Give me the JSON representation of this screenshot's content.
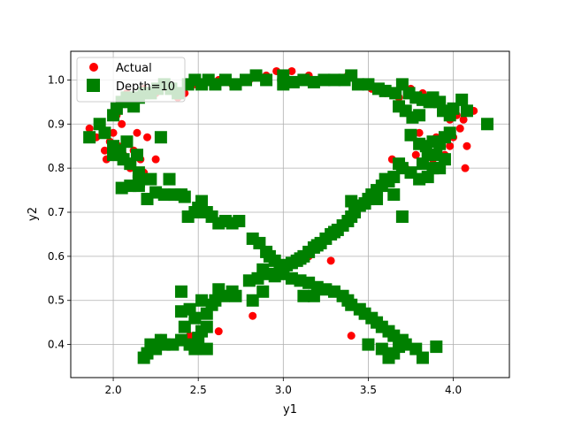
{
  "chart_data": {
    "type": "scatter",
    "xlabel": "y1",
    "ylabel": "y2",
    "xlim": [
      1.75,
      4.33
    ],
    "ylim": [
      0.325,
      1.065
    ],
    "xticks": [
      "2.0",
      "2.5",
      "3.0",
      "3.5",
      "4.0"
    ],
    "xtick_values": [
      2.0,
      2.5,
      3.0,
      3.5,
      4.0
    ],
    "yticks": [
      "0.4",
      "0.5",
      "0.6",
      "0.7",
      "0.8",
      "0.9",
      "1.0"
    ],
    "ytick_values": [
      0.4,
      0.5,
      0.6,
      0.7,
      0.8,
      0.9,
      1.0
    ],
    "grid": true,
    "legend_position": "top-left",
    "series": [
      {
        "name": "Actual",
        "marker": "circle",
        "color": "#ff0000",
        "points": [
          [
            1.86,
            0.89
          ],
          [
            1.9,
            0.87
          ],
          [
            1.93,
            0.9
          ],
          [
            1.95,
            0.84
          ],
          [
            1.96,
            0.82
          ],
          [
            1.98,
            0.86
          ],
          [
            2.0,
            0.88
          ],
          [
            2.02,
            0.92
          ],
          [
            2.03,
            0.85
          ],
          [
            2.05,
            0.9
          ],
          [
            2.06,
            0.83
          ],
          [
            2.08,
            0.86
          ],
          [
            2.1,
            0.8
          ],
          [
            2.12,
            0.84
          ],
          [
            2.14,
            0.88
          ],
          [
            2.16,
            0.82
          ],
          [
            2.18,
            0.79
          ],
          [
            2.2,
            0.87
          ],
          [
            2.25,
            0.82
          ],
          [
            2.04,
            0.95
          ],
          [
            2.08,
            0.97
          ],
          [
            2.12,
            0.96
          ],
          [
            2.18,
            0.98
          ],
          [
            2.25,
            0.97
          ],
          [
            2.32,
            0.98
          ],
          [
            2.38,
            0.96
          ],
          [
            2.42,
            0.97
          ],
          [
            2.48,
            0.99
          ],
          [
            2.55,
            1.0
          ],
          [
            2.62,
            1.0
          ],
          [
            2.7,
            0.99
          ],
          [
            2.8,
            1.0
          ],
          [
            2.9,
            1.01
          ],
          [
            2.96,
            1.02
          ],
          [
            3.05,
            1.02
          ],
          [
            3.15,
            1.01
          ],
          [
            3.25,
            1.0
          ],
          [
            3.32,
            1.0
          ],
          [
            3.38,
            1.01
          ],
          [
            3.45,
            0.99
          ],
          [
            3.52,
            0.98
          ],
          [
            3.6,
            0.97
          ],
          [
            3.68,
            0.96
          ],
          [
            3.75,
            0.98
          ],
          [
            3.82,
            0.97
          ],
          [
            3.88,
            0.96
          ],
          [
            3.92,
            0.95
          ],
          [
            3.95,
            0.93
          ],
          [
            3.98,
            0.91
          ],
          [
            4.0,
            0.94
          ],
          [
            4.02,
            0.92
          ],
          [
            4.06,
            0.91
          ],
          [
            4.08,
            0.93
          ],
          [
            4.12,
            0.93
          ],
          [
            3.8,
            0.88
          ],
          [
            3.85,
            0.85
          ],
          [
            3.88,
            0.82
          ],
          [
            3.9,
            0.87
          ],
          [
            3.92,
            0.8
          ],
          [
            3.95,
            0.83
          ],
          [
            3.98,
            0.85
          ],
          [
            4.0,
            0.87
          ],
          [
            4.04,
            0.89
          ],
          [
            4.08,
            0.85
          ],
          [
            4.07,
            0.8
          ],
          [
            3.85,
            0.78
          ],
          [
            3.78,
            0.83
          ],
          [
            3.72,
            0.8
          ],
          [
            3.64,
            0.82
          ],
          [
            2.82,
            0.465
          ],
          [
            2.62,
            0.43
          ],
          [
            2.28,
            0.415
          ],
          [
            2.45,
            0.42
          ],
          [
            3.15,
            0.6
          ],
          [
            3.2,
            0.62
          ],
          [
            3.28,
            0.59
          ],
          [
            3.4,
            0.42
          ]
        ]
      },
      {
        "name": "Depth=10",
        "marker": "square",
        "color": "#008000",
        "points": [
          [
            1.86,
            0.87
          ],
          [
            1.92,
            0.9
          ],
          [
            1.95,
            0.88
          ],
          [
            2.0,
            0.85
          ],
          [
            2.0,
            0.83
          ],
          [
            2.04,
            0.84
          ],
          [
            2.06,
            0.82
          ],
          [
            2.08,
            0.86
          ],
          [
            2.1,
            0.81
          ],
          [
            2.14,
            0.83
          ],
          [
            2.15,
            0.79
          ],
          [
            2.15,
            0.76
          ],
          [
            2.05,
            0.755
          ],
          [
            2.1,
            0.76
          ],
          [
            2.15,
            0.77
          ],
          [
            2.2,
            0.73
          ],
          [
            2.22,
            0.775
          ],
          [
            2.25,
            0.745
          ],
          [
            2.3,
            0.74
          ],
          [
            2.33,
            0.775
          ],
          [
            2.36,
            0.74
          ],
          [
            2.4,
            0.74
          ],
          [
            2.42,
            0.735
          ],
          [
            2.28,
            0.87
          ],
          [
            2.0,
            0.92
          ],
          [
            2.02,
            0.935
          ],
          [
            2.05,
            0.95
          ],
          [
            2.08,
            0.96
          ],
          [
            2.12,
            0.94
          ],
          [
            2.15,
            0.96
          ],
          [
            2.18,
            0.97
          ],
          [
            2.22,
            0.97
          ],
          [
            2.26,
            0.98
          ],
          [
            2.3,
            0.99
          ],
          [
            2.34,
            0.98
          ],
          [
            2.38,
            0.97
          ],
          [
            2.44,
            0.99
          ],
          [
            2.48,
            1.0
          ],
          [
            2.52,
            0.99
          ],
          [
            2.56,
            1.0
          ],
          [
            2.6,
            0.99
          ],
          [
            2.66,
            1.0
          ],
          [
            2.72,
            0.99
          ],
          [
            2.78,
            1.0
          ],
          [
            2.84,
            1.01
          ],
          [
            2.9,
            1.0
          ],
          [
            3.0,
            1.01
          ],
          [
            3.0,
            0.99
          ],
          [
            3.06,
            0.995
          ],
          [
            3.12,
            1.0
          ],
          [
            3.18,
            0.995
          ],
          [
            3.24,
            1.0
          ],
          [
            3.3,
            1.0
          ],
          [
            3.36,
            1.0
          ],
          [
            3.4,
            1.01
          ],
          [
            3.44,
            0.99
          ],
          [
            3.5,
            0.99
          ],
          [
            3.56,
            0.98
          ],
          [
            3.6,
            0.975
          ],
          [
            3.66,
            0.97
          ],
          [
            3.7,
            0.99
          ],
          [
            3.74,
            0.97
          ],
          [
            3.78,
            0.96
          ],
          [
            3.82,
            0.955
          ],
          [
            3.86,
            0.95
          ],
          [
            3.88,
            0.96
          ],
          [
            3.92,
            0.95
          ],
          [
            3.94,
            0.93
          ],
          [
            3.98,
            0.92
          ],
          [
            4.0,
            0.935
          ],
          [
            4.05,
            0.955
          ],
          [
            4.08,
            0.93
          ],
          [
            4.2,
            0.9
          ],
          [
            3.68,
            0.94
          ],
          [
            3.72,
            0.93
          ],
          [
            3.76,
            0.915
          ],
          [
            3.8,
            0.92
          ],
          [
            3.75,
            0.875
          ],
          [
            3.8,
            0.855
          ],
          [
            3.84,
            0.85
          ],
          [
            3.88,
            0.86
          ],
          [
            3.92,
            0.855
          ],
          [
            3.95,
            0.87
          ],
          [
            3.98,
            0.88
          ],
          [
            3.85,
            0.83
          ],
          [
            3.9,
            0.83
          ],
          [
            3.95,
            0.82
          ],
          [
            3.82,
            0.81
          ],
          [
            3.88,
            0.8
          ],
          [
            3.92,
            0.8
          ],
          [
            3.85,
            0.78
          ],
          [
            3.8,
            0.775
          ],
          [
            3.75,
            0.79
          ],
          [
            3.7,
            0.8
          ],
          [
            3.68,
            0.81
          ],
          [
            3.65,
            0.78
          ],
          [
            3.62,
            0.77
          ],
          [
            3.6,
            0.775
          ],
          [
            3.58,
            0.76
          ],
          [
            3.55,
            0.75
          ],
          [
            3.52,
            0.74
          ],
          [
            3.5,
            0.73
          ],
          [
            3.48,
            0.72
          ],
          [
            3.45,
            0.715
          ],
          [
            3.42,
            0.7
          ],
          [
            3.4,
            0.69
          ],
          [
            3.38,
            0.68
          ],
          [
            3.35,
            0.67
          ],
          [
            3.32,
            0.66
          ],
          [
            3.3,
            0.655
          ],
          [
            3.28,
            0.65
          ],
          [
            3.25,
            0.64
          ],
          [
            3.22,
            0.63
          ],
          [
            3.2,
            0.625
          ],
          [
            3.18,
            0.62
          ],
          [
            3.15,
            0.61
          ],
          [
            3.12,
            0.6
          ],
          [
            3.1,
            0.595
          ],
          [
            3.08,
            0.59
          ],
          [
            3.05,
            0.585
          ],
          [
            3.02,
            0.58
          ],
          [
            3.0,
            0.575
          ],
          [
            3.65,
            0.74
          ],
          [
            3.55,
            0.73
          ],
          [
            3.7,
            0.69
          ],
          [
            3.4,
            0.725
          ],
          [
            2.44,
            0.69
          ],
          [
            2.48,
            0.7
          ],
          [
            2.5,
            0.71
          ],
          [
            2.52,
            0.725
          ],
          [
            2.55,
            0.7
          ],
          [
            2.58,
            0.69
          ],
          [
            2.62,
            0.675
          ],
          [
            2.66,
            0.68
          ],
          [
            2.7,
            0.675
          ],
          [
            2.74,
            0.68
          ],
          [
            2.82,
            0.64
          ],
          [
            2.86,
            0.63
          ],
          [
            2.9,
            0.61
          ],
          [
            2.92,
            0.6
          ],
          [
            2.95,
            0.59
          ],
          [
            2.98,
            0.58
          ],
          [
            2.88,
            0.57
          ],
          [
            2.85,
            0.55
          ],
          [
            2.88,
            0.52
          ],
          [
            2.92,
            0.56
          ],
          [
            2.95,
            0.555
          ],
          [
            3.0,
            0.56
          ],
          [
            3.05,
            0.55
          ],
          [
            3.1,
            0.545
          ],
          [
            3.15,
            0.54
          ],
          [
            3.2,
            0.53
          ],
          [
            3.25,
            0.525
          ],
          [
            3.12,
            0.51
          ],
          [
            3.18,
            0.51
          ],
          [
            3.3,
            0.52
          ],
          [
            3.35,
            0.51
          ],
          [
            3.38,
            0.5
          ],
          [
            3.4,
            0.49
          ],
          [
            3.45,
            0.48
          ],
          [
            3.48,
            0.47
          ],
          [
            3.52,
            0.46
          ],
          [
            3.55,
            0.45
          ],
          [
            3.58,
            0.44
          ],
          [
            3.62,
            0.43
          ],
          [
            3.65,
            0.42
          ],
          [
            3.7,
            0.41
          ],
          [
            3.72,
            0.4
          ],
          [
            3.68,
            0.395
          ],
          [
            3.65,
            0.38
          ],
          [
            3.62,
            0.37
          ],
          [
            3.78,
            0.39
          ],
          [
            3.82,
            0.37
          ],
          [
            3.9,
            0.395
          ],
          [
            3.58,
            0.39
          ],
          [
            3.5,
            0.4
          ],
          [
            2.4,
            0.52
          ],
          [
            2.4,
            0.475
          ],
          [
            2.45,
            0.48
          ],
          [
            2.48,
            0.46
          ],
          [
            2.52,
            0.5
          ],
          [
            2.55,
            0.47
          ],
          [
            2.58,
            0.49
          ],
          [
            2.6,
            0.5
          ],
          [
            2.62,
            0.525
          ],
          [
            2.65,
            0.51
          ],
          [
            2.7,
            0.52
          ],
          [
            2.72,
            0.51
          ],
          [
            2.55,
            0.44
          ],
          [
            2.52,
            0.43
          ],
          [
            2.5,
            0.415
          ],
          [
            2.45,
            0.4
          ],
          [
            2.4,
            0.41
          ],
          [
            2.35,
            0.4
          ],
          [
            2.3,
            0.4
          ],
          [
            2.25,
            0.39
          ],
          [
            2.2,
            0.38
          ],
          [
            2.18,
            0.37
          ],
          [
            2.22,
            0.4
          ],
          [
            2.28,
            0.41
          ],
          [
            2.42,
            0.44
          ],
          [
            2.48,
            0.39
          ],
          [
            2.55,
            0.39
          ],
          [
            2.82,
            0.5
          ],
          [
            2.8,
            0.545
          ]
        ]
      }
    ]
  }
}
